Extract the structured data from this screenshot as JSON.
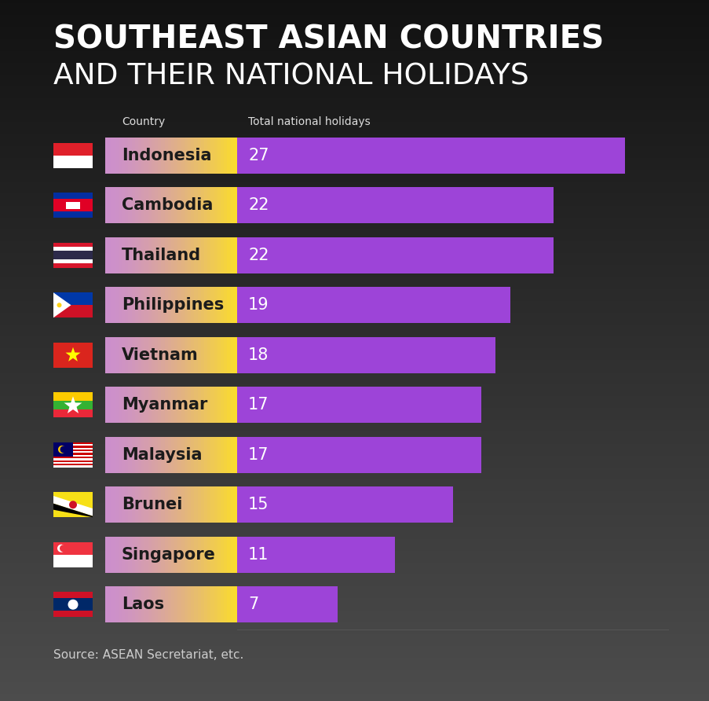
{
  "chart_data": {
    "type": "bar",
    "orientation": "horizontal",
    "title": "SOUTHEAST ASIAN COUNTRIES",
    "subtitle": "AND THEIR NATIONAL HOLIDAYS",
    "y_label": "Country",
    "x_label": "Total national holidays",
    "categories": [
      "Indonesia",
      "Cambodia",
      "Thailand",
      "Philippines",
      "Vietnam",
      "Myanmar",
      "Malaysia",
      "Brunei",
      "Singapore",
      "Laos"
    ],
    "values": [
      27,
      22,
      22,
      19,
      18,
      17,
      17,
      15,
      11,
      7
    ],
    "color": "#9d44d8",
    "xlim": [
      0,
      30
    ],
    "xticks": [],
    "data_labels": true,
    "tick_labels": false,
    "source": "Source: ASEAN Secretariat, etc."
  }
}
